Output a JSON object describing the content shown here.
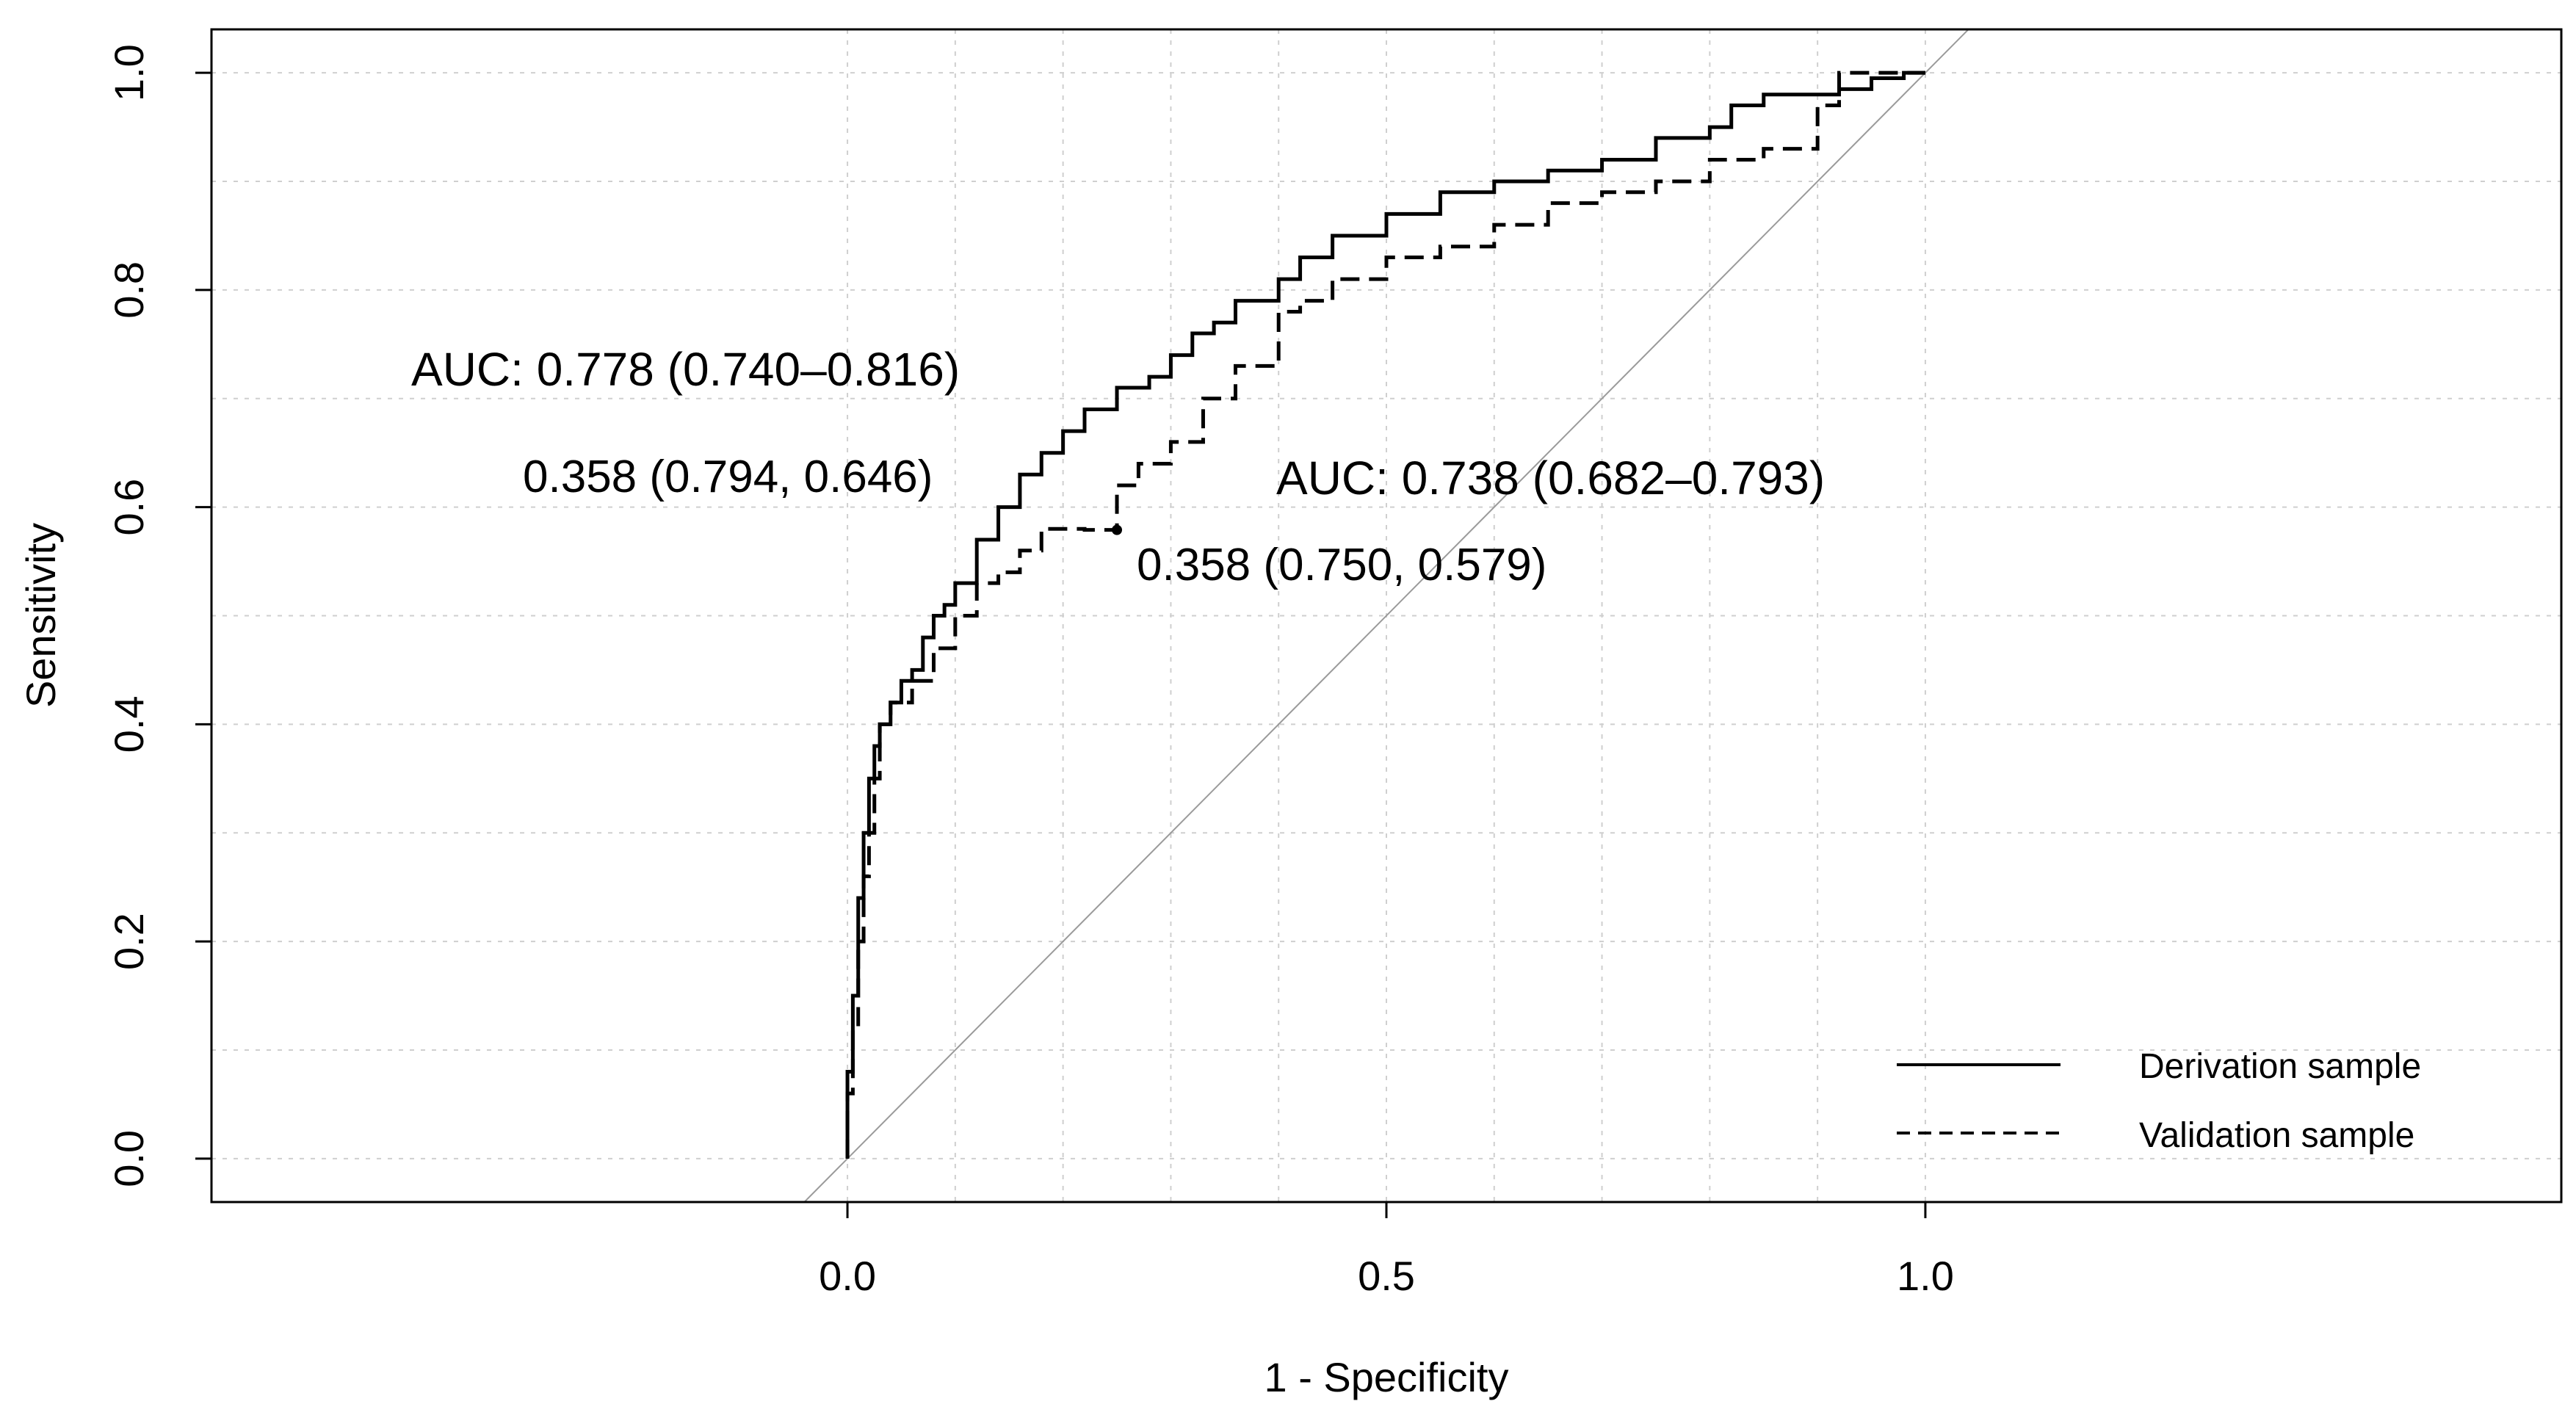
{
  "chart_data": {
    "type": "line",
    "xlabel": "1 - Specificity",
    "ylabel": "Sensitivity",
    "xlim": [
      -0.59,
      1.59
    ],
    "ylim": [
      -0.04,
      1.04
    ],
    "x_ticks": [
      0.0,
      0.5,
      1.0
    ],
    "x_tick_labels": [
      "0.0",
      "0.5",
      "1.0"
    ],
    "y_ticks": [
      0.0,
      0.2,
      0.4,
      0.6,
      0.8,
      1.0
    ],
    "y_tick_labels": [
      "0.0",
      "0.2",
      "0.4",
      "0.6",
      "0.8",
      "1.0"
    ],
    "grid": true,
    "diagonal_reference": true,
    "legend": {
      "position": "bottom-right",
      "entries": [
        {
          "label": "Derivation sample",
          "style": "solid"
        },
        {
          "label": "Validation sample",
          "style": "dashed"
        }
      ]
    },
    "annotations": {
      "derivation_auc": "AUC: 0.778 (0.740–0.816)",
      "derivation_threshold": "0.358 (0.794, 0.646)",
      "validation_auc": "AUC: 0.738 (0.682–0.793)",
      "validation_threshold": "0.358 (0.750, 0.579)"
    },
    "threshold_points": [
      {
        "series": "Validation sample",
        "x": 0.25,
        "y": 0.579
      }
    ],
    "series": [
      {
        "name": "Derivation sample",
        "style": "solid",
        "x": [
          0.0,
          0.005,
          0.01,
          0.015,
          0.02,
          0.025,
          0.03,
          0.04,
          0.05,
          0.06,
          0.07,
          0.08,
          0.09,
          0.1,
          0.12,
          0.14,
          0.16,
          0.18,
          0.2,
          0.22,
          0.25,
          0.28,
          0.3,
          0.32,
          0.34,
          0.36,
          0.4,
          0.42,
          0.45,
          0.5,
          0.55,
          0.6,
          0.65,
          0.7,
          0.75,
          0.8,
          0.82,
          0.85,
          0.9,
          0.92,
          0.95,
          0.98,
          1.0
        ],
        "y": [
          0.0,
          0.08,
          0.15,
          0.24,
          0.3,
          0.35,
          0.38,
          0.4,
          0.42,
          0.44,
          0.45,
          0.48,
          0.5,
          0.51,
          0.53,
          0.57,
          0.6,
          0.63,
          0.65,
          0.67,
          0.69,
          0.71,
          0.72,
          0.74,
          0.76,
          0.77,
          0.79,
          0.81,
          0.83,
          0.85,
          0.87,
          0.89,
          0.9,
          0.91,
          0.92,
          0.94,
          0.95,
          0.97,
          0.98,
          0.98,
          0.985,
          0.995,
          1.0
        ]
      },
      {
        "name": "Validation sample",
        "style": "dashed",
        "x": [
          0.0,
          0.005,
          0.01,
          0.015,
          0.02,
          0.025,
          0.03,
          0.04,
          0.06,
          0.08,
          0.1,
          0.12,
          0.14,
          0.16,
          0.18,
          0.2,
          0.22,
          0.25,
          0.27,
          0.3,
          0.33,
          0.36,
          0.4,
          0.42,
          0.45,
          0.5,
          0.55,
          0.6,
          0.65,
          0.7,
          0.75,
          0.8,
          0.85,
          0.9,
          0.92,
          0.94,
          0.96,
          1.0
        ],
        "y": [
          0.0,
          0.06,
          0.12,
          0.2,
          0.26,
          0.3,
          0.35,
          0.4,
          0.42,
          0.44,
          0.47,
          0.5,
          0.53,
          0.54,
          0.56,
          0.58,
          0.58,
          0.579,
          0.62,
          0.64,
          0.66,
          0.7,
          0.73,
          0.78,
          0.79,
          0.81,
          0.83,
          0.84,
          0.86,
          0.88,
          0.89,
          0.9,
          0.92,
          0.93,
          0.97,
          1.0,
          1.0,
          1.0
        ]
      }
    ]
  }
}
